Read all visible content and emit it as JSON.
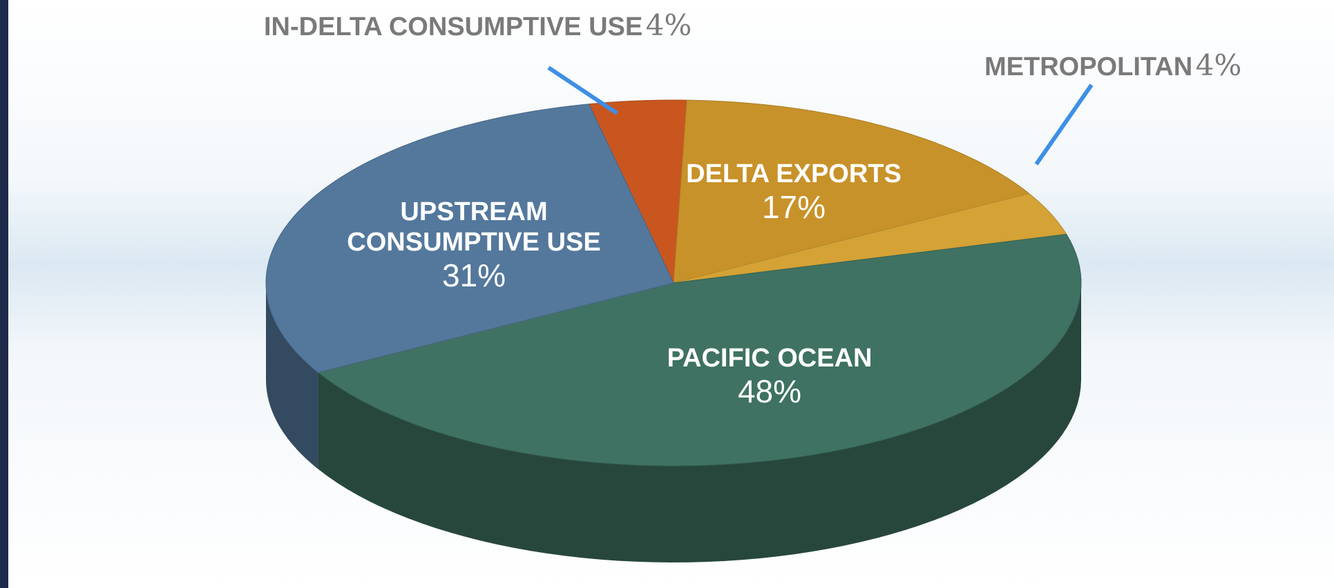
{
  "chart_data": {
    "type": "pie3d",
    "categories": [
      "IN-DELTA CONSUMPTIVE USE",
      "DELTA EXPORTS",
      "METROPOLITAN",
      "PACIFIC OCEAN",
      "UPSTREAM CONSUMPTIVE USE"
    ],
    "values": [
      4,
      17,
      4,
      48,
      31
    ],
    "value_labels": [
      "4%",
      "17%",
      "4%",
      "48%",
      "31%"
    ],
    "colors": [
      "#c9561f",
      "#c8922a",
      "#d4a235",
      "#3f7262",
      "#54789c"
    ]
  }
}
